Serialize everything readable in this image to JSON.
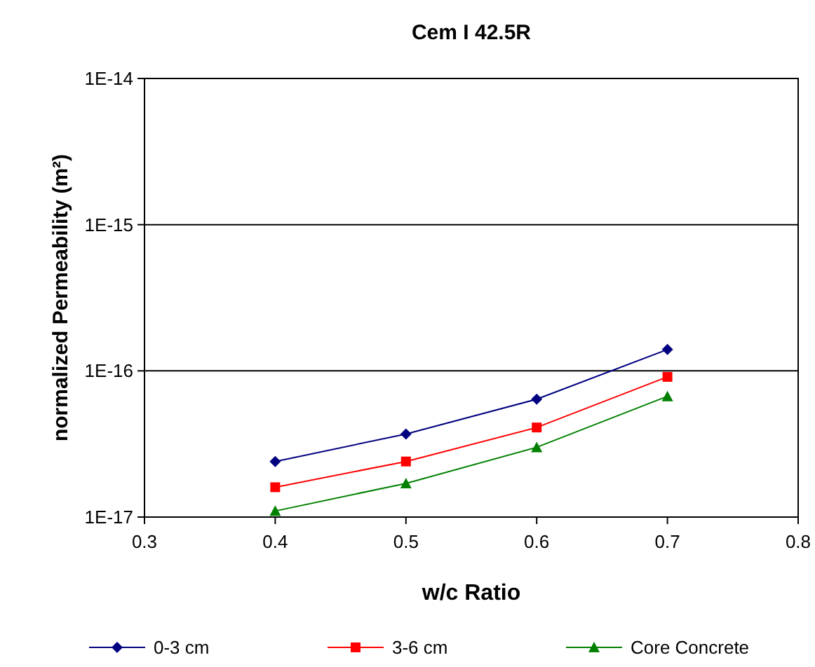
{
  "chart_data": {
    "type": "line",
    "title": "Cem I  42.5R",
    "xlabel": "w/c Ratio",
    "ylabel": "normalized Permeability (m²)",
    "x": [
      0.4,
      0.5,
      0.6,
      0.7
    ],
    "series": [
      {
        "name": "0-3 cm",
        "color": "#000080",
        "values": [
          2.4e-17,
          3.7e-17,
          6.4e-17,
          1.4e-16
        ],
        "marker": "diamond"
      },
      {
        "name": "3-6 cm",
        "color": "#ff0000",
        "values": [
          1.6e-17,
          2.4e-17,
          4.1e-17,
          9.1e-17
        ],
        "marker": "square"
      },
      {
        "name": "Core Concrete",
        "color": "#008000",
        "values": [
          1.1e-17,
          1.7e-17,
          3e-17,
          6.7e-17
        ],
        "marker": "triangle"
      }
    ],
    "xlim": [
      0.3,
      0.8
    ],
    "xticks": [
      0.3,
      0.4,
      0.5,
      0.6,
      0.7,
      0.8
    ],
    "ylim": [
      1e-17,
      1e-14
    ],
    "yticks": [
      {
        "value": 1e-17,
        "label": "1E-17"
      },
      {
        "value": 1e-16,
        "label": "1E-16"
      },
      {
        "value": 1e-15,
        "label": "1E-15"
      },
      {
        "value": 1e-14,
        "label": "1E-14"
      }
    ],
    "log": "y",
    "grid": "y",
    "legend": "bottom",
    "line_style": "solid"
  }
}
